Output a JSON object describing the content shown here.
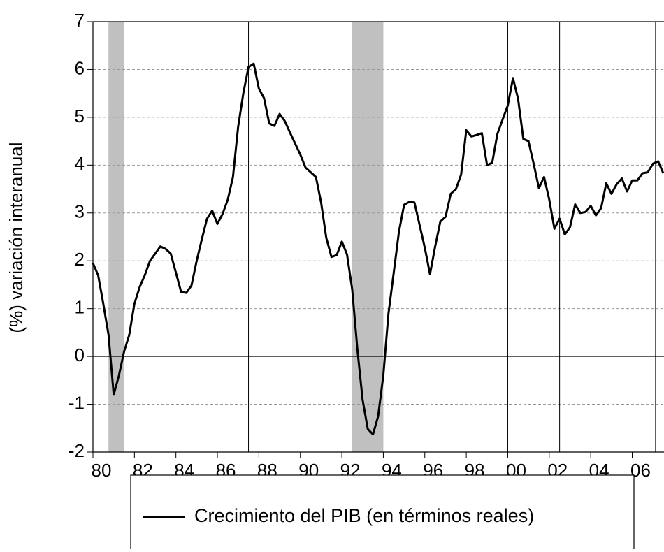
{
  "chart_data": {
    "type": "line",
    "y_label": "(%) variación interanual",
    "x": [
      1980,
      1980.25,
      1980.5,
      1980.75,
      1981,
      1981.25,
      1981.5,
      1981.75,
      1982,
      1982.25,
      1982.5,
      1982.75,
      1983,
      1983.25,
      1983.5,
      1983.75,
      1984,
      1984.25,
      1984.5,
      1984.75,
      1985,
      1985.25,
      1985.5,
      1985.75,
      1986,
      1986.25,
      1986.5,
      1986.75,
      1987,
      1987.25,
      1987.5,
      1987.75,
      1988,
      1988.25,
      1988.5,
      1988.75,
      1989,
      1989.25,
      1989.5,
      1989.75,
      1990,
      1990.25,
      1990.5,
      1990.75,
      1991,
      1991.25,
      1991.5,
      1991.75,
      1992,
      1992.25,
      1992.5,
      1992.75,
      1993,
      1993.25,
      1993.5,
      1993.75,
      1994,
      1994.25,
      1994.5,
      1994.75,
      1995,
      1995.25,
      1995.5,
      1995.75,
      1996,
      1996.25,
      1996.5,
      1996.75,
      1997,
      1997.25,
      1997.5,
      1997.75,
      1998,
      1998.25,
      1998.5,
      1998.75,
      1999,
      1999.25,
      1999.5,
      1999.75,
      2000,
      2000.25,
      2000.5,
      2000.75,
      2001,
      2001.25,
      2001.5,
      2001.75,
      2002,
      2002.25,
      2002.5,
      2002.75,
      2003,
      2003.25,
      2003.5,
      2003.75,
      2004,
      2004.25,
      2004.5,
      2004.75,
      2005,
      2005.25,
      2005.5,
      2005.75,
      2006,
      2006.25,
      2006.5,
      2006.75,
      2007,
      2007.25,
      2007.5
    ],
    "series": [
      {
        "name": "Crecimiento del PIB (en términos reales)",
        "color": "#000000",
        "values": [
          1.95,
          1.7,
          1.1,
          0.45,
          -0.8,
          -0.4,
          0.1,
          0.45,
          1.1,
          1.45,
          1.7,
          2.0,
          2.15,
          2.3,
          2.25,
          2.15,
          1.75,
          1.35,
          1.33,
          1.48,
          2.0,
          2.45,
          2.88,
          3.05,
          2.77,
          2.98,
          3.28,
          3.75,
          4.8,
          5.5,
          6.05,
          6.12,
          5.6,
          5.4,
          4.87,
          4.82,
          5.07,
          4.92,
          4.68,
          4.45,
          4.22,
          3.95,
          3.85,
          3.75,
          3.22,
          2.48,
          2.08,
          2.12,
          2.4,
          2.13,
          1.4,
          0.15,
          -0.9,
          -1.52,
          -1.63,
          -1.25,
          -0.4,
          0.9,
          1.75,
          2.6,
          3.17,
          3.23,
          3.22,
          2.75,
          2.27,
          1.72,
          2.3,
          2.82,
          2.92,
          3.4,
          3.5,
          3.8,
          4.73,
          4.6,
          4.63,
          4.67,
          4.0,
          4.05,
          4.65,
          4.95,
          5.25,
          5.82,
          5.38,
          4.55,
          4.5,
          4.03,
          3.52,
          3.75,
          3.28,
          2.67,
          2.88,
          2.55,
          2.7,
          3.18,
          3.0,
          3.02,
          3.15,
          2.95,
          3.1,
          3.62,
          3.4,
          3.6,
          3.72,
          3.45,
          3.68,
          3.68,
          3.83,
          3.85,
          4.03,
          4.08,
          3.83
        ]
      }
    ],
    "xlim": [
      1980,
      2007.5
    ],
    "xticks": [
      {
        "value": 1980,
        "label": "80"
      },
      {
        "value": 1982,
        "label": "82"
      },
      {
        "value": 1984,
        "label": "84"
      },
      {
        "value": 1986,
        "label": "86"
      },
      {
        "value": 1988,
        "label": "88"
      },
      {
        "value": 1990,
        "label": "90"
      },
      {
        "value": 1992,
        "label": "92"
      },
      {
        "value": 1994,
        "label": "94"
      },
      {
        "value": 1996,
        "label": "96"
      },
      {
        "value": 1998,
        "label": "98"
      },
      {
        "value": 2000,
        "label": "00"
      },
      {
        "value": 2002,
        "label": "02"
      },
      {
        "value": 2004,
        "label": "04"
      },
      {
        "value": 2006,
        "label": "06"
      }
    ],
    "ylim": [
      -2,
      7
    ],
    "yticks": [
      -2,
      -1,
      0,
      1,
      2,
      3,
      4,
      5,
      6,
      7
    ],
    "grid": true,
    "shaded_periods": [
      [
        1980.75,
        1981.5
      ],
      [
        1992.5,
        1994
      ]
    ],
    "shade_color": "#c0c0c0",
    "vertical_lines": [
      1987.5,
      2000,
      2002.5,
      2007.125
    ],
    "legend": "bottom"
  }
}
